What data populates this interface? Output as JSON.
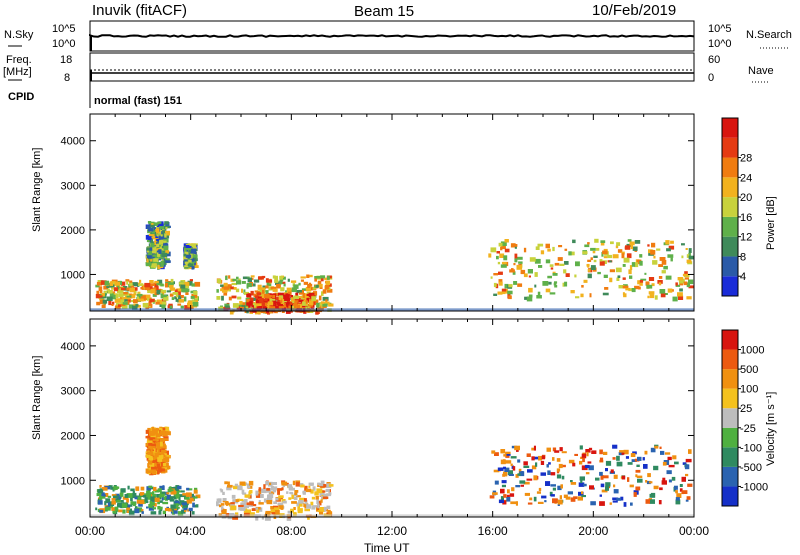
{
  "header": {
    "station": "Inuvik (fitACF)",
    "beam": "Beam 15",
    "date": "10/Feb/2019"
  },
  "top_panel": {
    "left_label": "N.Sky",
    "right_label": "N.Search",
    "left_ticks": [
      "10^5",
      "10^0"
    ],
    "right_ticks": [
      "10^5",
      "10^0"
    ]
  },
  "freq_panel": {
    "left_label": "Freq.",
    "left_unit": "[MHz]",
    "right_label": "Nave",
    "cpid_label": "CPID",
    "left_ticks": [
      "18",
      "8"
    ],
    "right_ticks": [
      "60",
      "0"
    ],
    "cpid_value": "normal (fast) 151"
  },
  "x_axis": {
    "label": "Time UT",
    "ticks": [
      "00:00",
      "04:00",
      "08:00",
      "12:00",
      "16:00",
      "20:00",
      "00:00"
    ]
  },
  "chart_data": [
    {
      "type": "heatmap",
      "title": "",
      "xlabel": "Time UT",
      "ylabel": "Slant Range [km]",
      "yticks": [
        "1000",
        "2000",
        "3000",
        "4000"
      ],
      "ylim": [
        180,
        4600
      ],
      "xlim_hours": [
        0,
        24
      ],
      "colorbar": {
        "label": "Power [dB]",
        "ticks": [
          "4",
          "8",
          "12",
          "16",
          "20",
          "24",
          "28"
        ],
        "colors": [
          "#1a2cd8",
          "#2a5aa8",
          "#3f8a5a",
          "#5fb04a",
          "#c8d23c",
          "#f2b21e",
          "#f07c10",
          "#e53a12",
          "#d8150f"
        ]
      },
      "regions": [
        {
          "t0": 0.2,
          "t1": 4.2,
          "r0": 300,
          "r1": 900,
          "intensity": "high"
        },
        {
          "t0": 2.2,
          "t1": 3.0,
          "r0": 1200,
          "r1": 2200,
          "intensity": "medium"
        },
        {
          "t0": 3.7,
          "t1": 4.1,
          "r0": 1200,
          "r1": 1700,
          "intensity": "medium"
        },
        {
          "t0": 5.0,
          "t1": 9.5,
          "r0": 200,
          "r1": 1000,
          "intensity": "high"
        },
        {
          "t0": 6.2,
          "t1": 8.8,
          "r0": 200,
          "r1": 600,
          "intensity": "very high"
        },
        {
          "t0": 15.8,
          "t1": 23.8,
          "r0": 500,
          "r1": 1800,
          "intensity": "high"
        }
      ]
    },
    {
      "type": "heatmap",
      "title": "",
      "xlabel": "Time UT",
      "ylabel": "Slant Range [km]",
      "yticks": [
        "1000",
        "2000",
        "3000",
        "4000"
      ],
      "ylim": [
        180,
        4600
      ],
      "xlim_hours": [
        0,
        24
      ],
      "colorbar": {
        "label": "Velocity [m s⁻¹]",
        "ticks": [
          "1000",
          "500",
          "100",
          "25",
          "-25",
          "-100",
          "-500",
          "-1000"
        ],
        "colors": [
          "#1530c8",
          "#2a63b0",
          "#2f8a60",
          "#4fb040",
          "#bdbdbd",
          "#f4c21e",
          "#f09010",
          "#ec5a10",
          "#d8150f"
        ]
      },
      "regions": [
        {
          "t0": 0.2,
          "t1": 4.2,
          "r0": 300,
          "r1": 900,
          "dominant": "green/teal"
        },
        {
          "t0": 2.2,
          "t1": 3.0,
          "r0": 1200,
          "r1": 2200,
          "dominant": "orange"
        },
        {
          "t0": 5.0,
          "t1": 9.5,
          "r0": 200,
          "r1": 1000,
          "dominant": "grey/orange"
        },
        {
          "t0": 15.8,
          "t1": 23.8,
          "r0": 500,
          "r1": 1800,
          "dominant": "orange/blue"
        }
      ]
    }
  ]
}
